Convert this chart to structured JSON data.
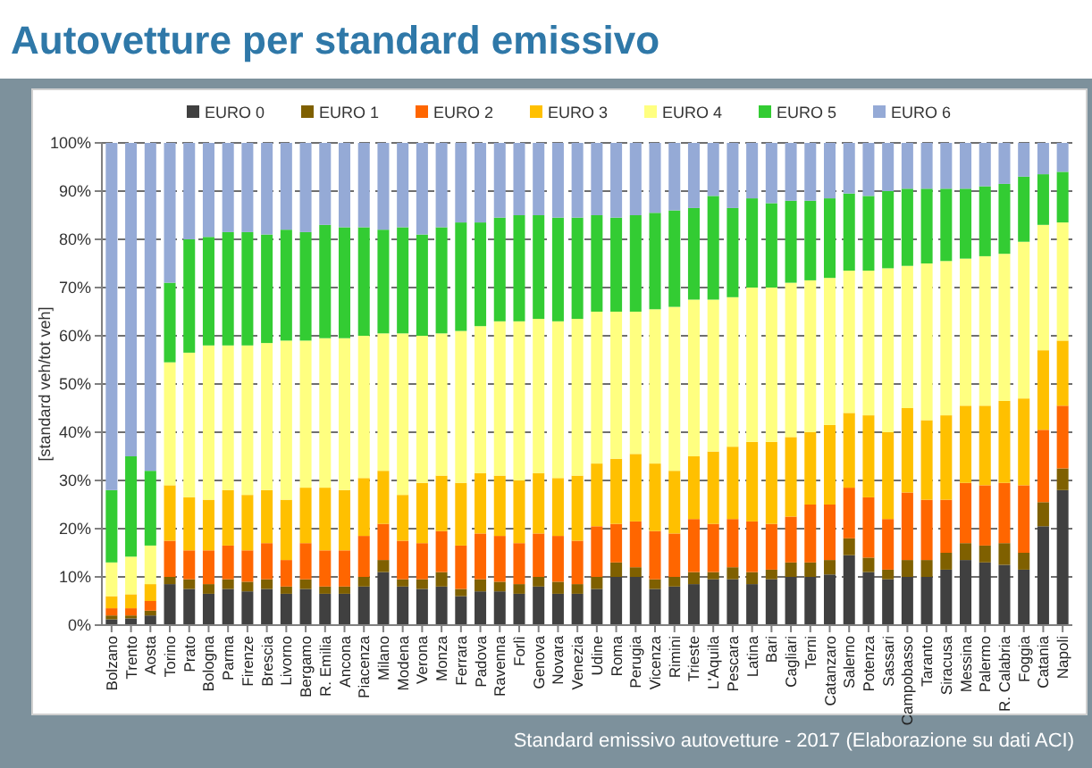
{
  "chart_data": {
    "type": "bar",
    "stacked": true,
    "title": "Autovetture per standard emissivo",
    "ylabel": "[standard veh/tot veh]",
    "annotations": [
      "Standard emissivo autovetture - 2017 (Elaborazione su dati ACI)"
    ],
    "categories": [
      "Bolzano",
      "Trento",
      "Aosta",
      "Torino",
      "Prato",
      "Bologna",
      "Parma",
      "Firenze",
      "Brescia",
      "Livorno",
      "Bergamo",
      "R. Emilia",
      "Ancona",
      "Piacenza",
      "Milano",
      "Modena",
      "Verona",
      "Monza",
      "Ferrara",
      "Padova",
      "Ravenna",
      "Forlì",
      "Genova",
      "Novara",
      "Venezia",
      "Udine",
      "Roma",
      "Perugia",
      "Vicenza",
      "Rimini",
      "Trieste",
      "L'Aquila",
      "Pescara",
      "Latina",
      "Bari",
      "Cagliari",
      "Terni",
      "Catanzaro",
      "Salerno",
      "Potenza",
      "Sassari",
      "Campobasso",
      "Taranto",
      "Siracusa",
      "Messina",
      "Palermo",
      "R. Calabria",
      "Foggia",
      "Catania",
      "Napoli"
    ],
    "series": [
      {
        "name": "EURO 0",
        "color": "#404040",
        "values": [
          1.2,
          1.4,
          2,
          8.5,
          7.5,
          6.5,
          7.5,
          7,
          7.5,
          6.5,
          7.5,
          6.5,
          6.5,
          8,
          11,
          8,
          7.5,
          8,
          6,
          7,
          7,
          6.5,
          8,
          6.5,
          6.5,
          7.5,
          10,
          10,
          7.5,
          8,
          8.5,
          9.5,
          9.5,
          8.5,
          9.5,
          10,
          10,
          10.5,
          14.5,
          11,
          9.5,
          10,
          10,
          11.5,
          13.5,
          13,
          12.5,
          11.5,
          20.5,
          28
        ]
      },
      {
        "name": "EURO 1",
        "color": "#7f6000",
        "values": [
          0.8,
          0.6,
          1,
          1.5,
          2,
          2,
          2,
          2,
          2,
          1.5,
          2,
          1.5,
          1.5,
          2,
          2.5,
          1.5,
          2,
          3,
          1.5,
          2.5,
          2,
          2,
          2,
          2.5,
          2,
          2.5,
          3,
          2,
          2,
          2,
          2.5,
          1.5,
          2.5,
          2.5,
          2,
          3,
          3,
          3,
          3.5,
          3,
          2,
          3.5,
          3.5,
          3.5,
          3.5,
          3.5,
          4.5,
          3.5,
          5,
          4.5
        ]
      },
      {
        "name": "EURO 2",
        "color": "#ff6600",
        "values": [
          1.5,
          1.5,
          2,
          7.5,
          6,
          7,
          7,
          6.5,
          7.5,
          5.5,
          7.5,
          7.5,
          7.5,
          8.5,
          7.5,
          8,
          7.5,
          8.5,
          9,
          9.5,
          9.5,
          8.5,
          9,
          9.5,
          9,
          10.5,
          8,
          9.5,
          10,
          9,
          11,
          10,
          10,
          10.5,
          9.5,
          9.5,
          12,
          11.5,
          10.5,
          12.5,
          10.5,
          14,
          12.5,
          11,
          12.5,
          12.5,
          12.5,
          14,
          15,
          13
        ]
      },
      {
        "name": "EURO 3",
        "color": "#ffc000",
        "values": [
          2.5,
          2.9,
          3.5,
          11.5,
          11,
          10.5,
          11.5,
          11.5,
          11,
          12.5,
          11.5,
          13,
          12.5,
          12,
          11,
          9.5,
          12.5,
          11.5,
          13,
          12.5,
          12.5,
          13,
          12.5,
          12,
          13.5,
          13,
          13.5,
          14,
          14,
          13,
          13,
          15,
          15,
          16.5,
          17,
          16.5,
          15,
          16.5,
          15.5,
          17,
          18,
          17.5,
          16.5,
          17.5,
          16,
          16.5,
          17,
          18,
          16.5,
          13.5
        ]
      },
      {
        "name": "EURO 4",
        "color": "#ffff80",
        "values": [
          7,
          7.8,
          8,
          25.5,
          30,
          32,
          30,
          31,
          30.5,
          33,
          30.5,
          31,
          31.5,
          29.5,
          28.5,
          33.5,
          30.5,
          29.5,
          31.5,
          30.5,
          32,
          33,
          32,
          32.5,
          32.5,
          31.5,
          30.5,
          29.5,
          32,
          34,
          32.5,
          31.5,
          31,
          32,
          32,
          32,
          31.5,
          30.5,
          29.5,
          30,
          34,
          29.5,
          32.5,
          32,
          30.5,
          31,
          30.5,
          32.5,
          26,
          24.5
        ]
      },
      {
        "name": "EURO 5",
        "color": "#33cc33",
        "values": [
          15,
          20.8,
          15.5,
          16.5,
          23.5,
          22.5,
          23.5,
          23.5,
          22.5,
          23,
          22.5,
          23.5,
          23,
          22.5,
          21.5,
          22,
          21,
          22,
          22.5,
          21.5,
          21.5,
          22,
          21.5,
          21.5,
          21,
          20,
          19.5,
          20,
          20,
          20,
          19,
          21.5,
          18.5,
          18.5,
          17.5,
          17,
          16.5,
          16.5,
          16,
          15.5,
          16,
          16,
          15.5,
          15,
          14.5,
          14.5,
          14.5,
          13.5,
          10.5,
          10.5
        ]
      },
      {
        "name": "EURO 6",
        "color": "#95aad6",
        "values": [
          72,
          65,
          68,
          29,
          20,
          19.5,
          18.5,
          18.5,
          19,
          18,
          18.5,
          17,
          17.5,
          17.5,
          18,
          17.5,
          19,
          17.5,
          16.5,
          16.5,
          15.5,
          15,
          15,
          15.5,
          15.5,
          15,
          15.5,
          15,
          14.5,
          14,
          13.5,
          11,
          13.5,
          11.5,
          12.5,
          12,
          12,
          11.5,
          10.5,
          11,
          10,
          9.5,
          9.5,
          9.5,
          9.5,
          9,
          8.5,
          7,
          6.5,
          6
        ]
      }
    ],
    "ylim": [
      0,
      100
    ],
    "yticks": [
      {
        "value": 0,
        "label": "0%"
      },
      {
        "value": 10,
        "label": "10%"
      },
      {
        "value": 20,
        "label": "20%"
      },
      {
        "value": 30,
        "label": "30%"
      },
      {
        "value": 40,
        "label": "40%"
      },
      {
        "value": 50,
        "label": "50%"
      },
      {
        "value": 60,
        "label": "60%"
      },
      {
        "value": 70,
        "label": "70%"
      },
      {
        "value": 80,
        "label": "80%"
      },
      {
        "value": 90,
        "label": "90%"
      },
      {
        "value": 100,
        "label": "100%"
      }
    ],
    "grid": "y",
    "legend": "top"
  }
}
